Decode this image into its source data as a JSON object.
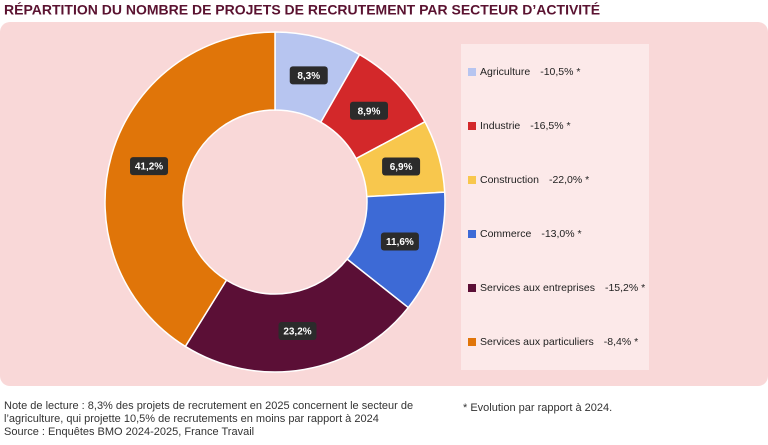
{
  "chart_data": {
    "type": "donut",
    "title": "RÉPARTITION DU NOMBRE DE PROJETS DE RECRUTEMENT PAR SECTEUR D’ACTIVITÉ",
    "categories": [
      "Agriculture",
      "Industrie",
      "Construction",
      "Commerce",
      "Services aux entreprises",
      "Services aux particuliers"
    ],
    "values": [
      8.3,
      8.9,
      6.9,
      11.6,
      23.2,
      41.2
    ],
    "value_labels": [
      "8,3%",
      "8,9%",
      "6,9%",
      "11,6%",
      "23,2%",
      "41,2%"
    ],
    "colors": [
      "#b7c5f0",
      "#d3282a",
      "#f8c74d",
      "#3d6ad6",
      "#5b0f36",
      "#e07509"
    ],
    "evolution_labels": [
      "-10,5% *",
      "-16,5% *",
      "-22,0% *",
      "-13,0% *",
      "-15,2% *",
      "-8,4% *"
    ]
  },
  "notes": {
    "reading": [
      "Note de lecture : 8,3% des projets de recrutement en 2025 concernent le secteur de",
      "l’agriculture, qui projette 10,5% de recrutements en moins par rapport à 2024",
      "Source : Enquêtes BMO 2024-2025, France Travail"
    ],
    "footnote": "* Evolution par rapport à 2024."
  }
}
